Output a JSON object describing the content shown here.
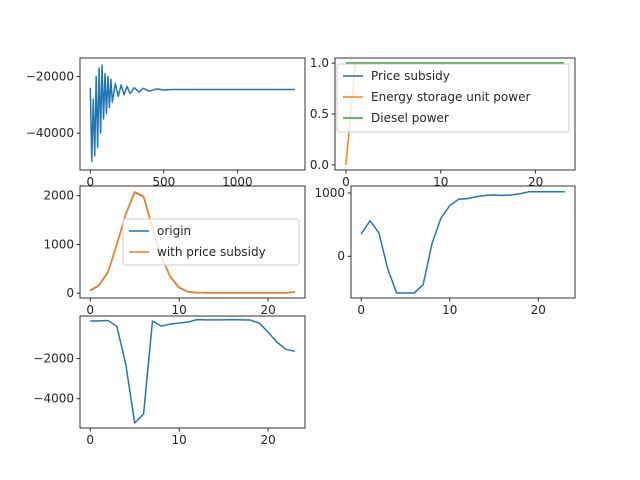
{
  "colors": {
    "blue": "#1f77b4",
    "orange": "#ff7f0e",
    "green": "#2ca02c",
    "axes": "#000000",
    "text": "#262626",
    "legend_edge": "#cccccc"
  },
  "chart_data": [
    {
      "panel": "top-left",
      "type": "line",
      "title": "",
      "xlabel": "",
      "ylabel": "",
      "xlim": [
        -70,
        1460
      ],
      "ylim": [
        -53000,
        -13500
      ],
      "xticks": [
        0,
        500,
        1000
      ],
      "xtick_labels": [
        "0",
        "500",
        "1000"
      ],
      "yticks": [
        -40000,
        -20000
      ],
      "ytick_labels": [
        "−40000",
        "−20000"
      ],
      "grid": false,
      "legend": null,
      "series": [
        {
          "x": [
            0,
            10,
            20,
            30,
            40,
            50,
            60,
            70,
            80,
            90,
            100,
            110,
            120,
            130,
            140,
            150,
            170,
            190,
            210,
            230,
            250,
            270,
            300,
            330,
            360,
            400,
            450,
            500,
            550,
            600,
            700,
            800,
            900,
            1000,
            1100,
            1200,
            1300,
            1390
          ],
          "y": [
            -24000,
            -50000,
            -28000,
            -48000,
            -20000,
            -45000,
            -17000,
            -40000,
            -16000,
            -35000,
            -19000,
            -33000,
            -20000,
            -31000,
            -21000,
            -29000,
            -22500,
            -27000,
            -23000,
            -26500,
            -23500,
            -26000,
            -24000,
            -25500,
            -24200,
            -25200,
            -24400,
            -24800,
            -24600,
            -24600,
            -24600,
            -24600,
            -24600,
            -24600,
            -24600,
            -24600,
            -24600,
            -24600
          ]
        }
      ]
    },
    {
      "panel": "top-right",
      "type": "line",
      "title": "",
      "xlabel": "",
      "ylabel": "",
      "xlim": [
        -1.15,
        24.15
      ],
      "ylim": [
        -0.05,
        1.05
      ],
      "xticks": [
        0,
        10,
        20
      ],
      "xtick_labels": [
        "0",
        "10",
        "20"
      ],
      "yticks": [
        0.0,
        0.5,
        1.0
      ],
      "ytick_labels": [
        "0.0",
        "0.5",
        "1.0"
      ],
      "grid": false,
      "legend": "upper-left",
      "series": [
        {
          "name": "Price subsidy",
          "color": "blue",
          "x": [
            0,
            1,
            2,
            3,
            4,
            5,
            6,
            7,
            8,
            9,
            10,
            11,
            12,
            13,
            14,
            15,
            16,
            17,
            18,
            19,
            20,
            21,
            22,
            23
          ],
          "y": [
            1,
            1,
            1,
            1,
            1,
            1,
            1,
            1,
            1,
            1,
            1,
            1,
            1,
            1,
            1,
            1,
            1,
            1,
            1,
            1,
            1,
            1,
            1,
            1
          ]
        },
        {
          "name": "Energy storage unit power",
          "color": "orange",
          "x": [
            0,
            1,
            2,
            3,
            4,
            5,
            6,
            7,
            8,
            9,
            10,
            11,
            12,
            13,
            14,
            15,
            16,
            17,
            18,
            19,
            20,
            21,
            22,
            23
          ],
          "y": [
            0,
            1,
            1,
            1,
            1,
            1,
            1,
            1,
            1,
            1,
            1,
            1,
            1,
            1,
            1,
            1,
            1,
            1,
            1,
            1,
            1,
            1,
            1,
            1
          ]
        },
        {
          "name": "Diesel power",
          "color": "green",
          "x": [
            0,
            1,
            2,
            3,
            4,
            5,
            6,
            7,
            8,
            9,
            10,
            11,
            12,
            13,
            14,
            15,
            16,
            17,
            18,
            19,
            20,
            21,
            22,
            23
          ],
          "y": [
            1,
            1,
            1,
            1,
            1,
            1,
            1,
            1,
            1,
            1,
            1,
            1,
            1,
            1,
            1,
            1,
            1,
            1,
            1,
            1,
            1,
            1,
            1,
            1
          ]
        }
      ]
    },
    {
      "panel": "middle-left",
      "type": "line",
      "title": "",
      "xlabel": "",
      "ylabel": "",
      "xlim": [
        -1.15,
        24.15
      ],
      "ylim": [
        -100,
        2200
      ],
      "xticks": [
        0,
        10,
        20
      ],
      "xtick_labels": [
        "0",
        "10",
        "20"
      ],
      "yticks": [
        0,
        1000,
        2000
      ],
      "ytick_labels": [
        "0",
        "1000",
        "2000"
      ],
      "grid": false,
      "legend": "center-right",
      "series": [
        {
          "name": "origin",
          "color": "blue",
          "x": [
            0,
            1,
            2,
            3,
            4,
            5,
            6,
            7,
            8,
            9,
            10,
            11,
            12,
            13,
            14,
            15,
            16,
            17,
            18,
            19,
            20,
            21,
            22,
            23
          ],
          "y": [
            50,
            160,
            430,
            1000,
            1620,
            2070,
            1980,
            1330,
            750,
            330,
            110,
            25,
            10,
            5,
            5,
            5,
            5,
            5,
            5,
            5,
            5,
            5,
            5,
            20
          ]
        },
        {
          "name": "with price subsidy",
          "color": "orange",
          "x": [
            0,
            1,
            2,
            3,
            4,
            5,
            6,
            7,
            8,
            9,
            10,
            11,
            12,
            13,
            14,
            15,
            16,
            17,
            18,
            19,
            20,
            21,
            22,
            23
          ],
          "y": [
            60,
            170,
            440,
            1010,
            1630,
            2080,
            1990,
            1340,
            760,
            340,
            120,
            30,
            12,
            6,
            6,
            6,
            6,
            6,
            6,
            6,
            6,
            6,
            6,
            25
          ]
        }
      ]
    },
    {
      "panel": "middle-right",
      "type": "line",
      "title": "",
      "xlabel": "",
      "ylabel": "",
      "xlim": [
        -1.15,
        24.15
      ],
      "ylim": [
        -660,
        1110
      ],
      "xticks": [
        0,
        10,
        20
      ],
      "xtick_labels": [
        "0",
        "10",
        "20"
      ],
      "yticks": [
        0,
        1000
      ],
      "ytick_labels": [
        "0",
        "1000"
      ],
      "grid": false,
      "legend": null,
      "series": [
        {
          "x": [
            0,
            1,
            2,
            3,
            4,
            5,
            6,
            7,
            8,
            9,
            10,
            11,
            12,
            13,
            14,
            15,
            16,
            17,
            18,
            19,
            20,
            21,
            22,
            23
          ],
          "y": [
            350,
            560,
            370,
            -200,
            -580,
            -580,
            -580,
            -450,
            200,
            600,
            800,
            900,
            910,
            940,
            960,
            970,
            960,
            970,
            990,
            1020,
            1020,
            1020,
            1020,
            1020
          ]
        }
      ]
    },
    {
      "panel": "bottom-left",
      "type": "line",
      "title": "",
      "xlabel": "",
      "ylabel": "",
      "xlim": [
        -1.15,
        24.15
      ],
      "ylim": [
        -5450,
        100
      ],
      "xticks": [
        0,
        10,
        20
      ],
      "xtick_labels": [
        "0",
        "10",
        "20"
      ],
      "yticks": [
        -4000,
        -2000
      ],
      "ytick_labels": [
        "−4000",
        "−2000"
      ],
      "grid": false,
      "legend": null,
      "series": [
        {
          "x": [
            0,
            1,
            2,
            3,
            4,
            5,
            6,
            7,
            8,
            9,
            10,
            11,
            12,
            13,
            14,
            15,
            16,
            17,
            18,
            19,
            20,
            21,
            22,
            23
          ],
          "y": [
            -150,
            -140,
            -120,
            -420,
            -2300,
            -5200,
            -4750,
            -150,
            -400,
            -300,
            -250,
            -200,
            -80,
            -90,
            -90,
            -90,
            -80,
            -90,
            -100,
            -250,
            -700,
            -1200,
            -1550,
            -1650
          ]
        }
      ]
    }
  ]
}
